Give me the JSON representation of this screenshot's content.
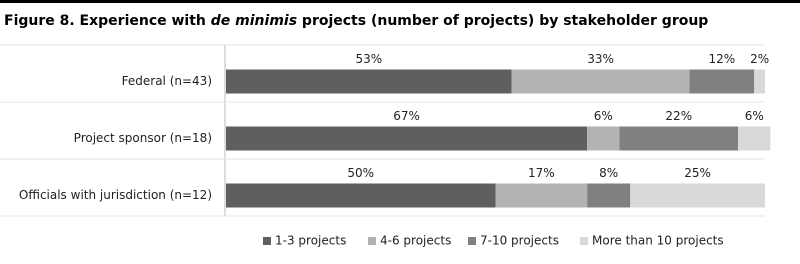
{
  "chart_data": {
    "type": "stacked-bar-horizontal",
    "title": [
      "Figure 8.  Experience with ",
      "de minimis",
      " projects (number of projects) by stakeholder group"
    ],
    "categories": [
      "Federal (n=43)",
      "Project sponsor (n=18)",
      "Officials with jurisdiction (n=12)"
    ],
    "series": [
      {
        "name": "1-3 projects",
        "color": "#5f5f5f",
        "values": [
          53,
          67,
          50
        ],
        "value_labels": [
          "53%",
          "67%",
          "50%"
        ]
      },
      {
        "name": "4-6 projects",
        "color": "#b3b3b3",
        "values": [
          33,
          6,
          17
        ],
        "value_labels": [
          "33%",
          "6%",
          "17%"
        ]
      },
      {
        "name": "7-10 projects",
        "color": "#808080",
        "values": [
          12,
          22,
          8
        ],
        "value_labels": [
          "12%",
          "22%",
          "8%"
        ]
      },
      {
        "name": "More than 10 projects",
        "color": "#d9d9d9",
        "values": [
          2,
          6,
          25
        ],
        "value_labels": [
          "2%",
          "6%",
          "25%"
        ]
      }
    ],
    "xlim": [
      0,
      100
    ],
    "legend": "bottom"
  }
}
